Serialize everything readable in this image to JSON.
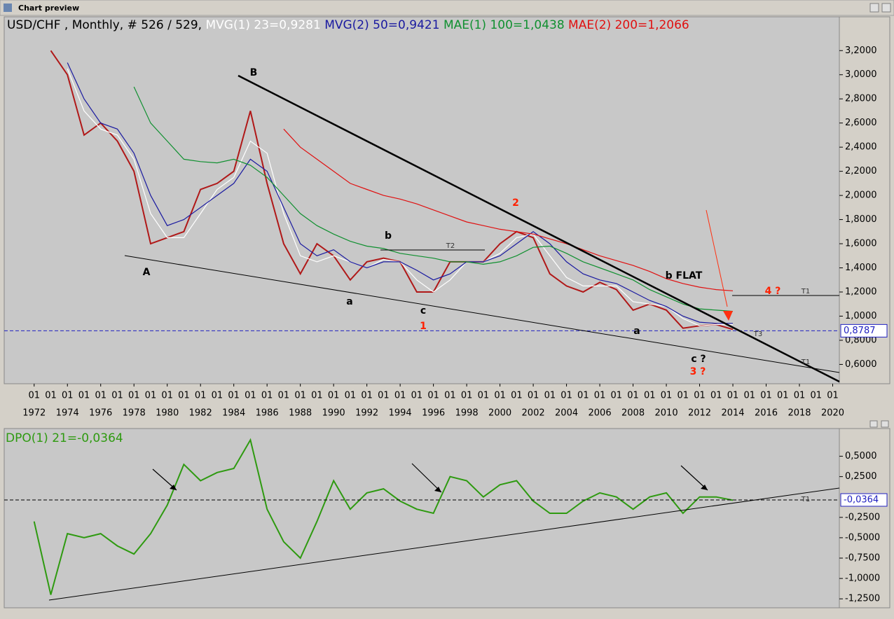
{
  "window_title": "Chart preview",
  "chart_data": [
    {
      "type": "line",
      "title": "USD/CHF , Monthly, # 526 / 529,",
      "x": [
        1973,
        1974,
        1975,
        1976,
        1977,
        1978,
        1979,
        1980,
        1981,
        1982,
        1983,
        1984,
        1985,
        1986,
        1987,
        1988,
        1989,
        1990,
        1991,
        1992,
        1993,
        1994,
        1995,
        1996,
        1997,
        1998,
        1999,
        2000,
        2001,
        2002,
        2003,
        2004,
        2005,
        2006,
        2007,
        2008,
        2009,
        2010,
        2011,
        2012,
        2013,
        2014
      ],
      "series": [
        {
          "name": "USD/CHF",
          "color": "#b01818",
          "values": [
            3.2,
            3.0,
            2.5,
            2.6,
            2.45,
            2.2,
            1.6,
            1.65,
            1.7,
            2.05,
            2.1,
            2.2,
            2.7,
            2.1,
            1.6,
            1.35,
            1.6,
            1.5,
            1.3,
            1.45,
            1.48,
            1.45,
            1.2,
            1.2,
            1.45,
            1.45,
            1.45,
            1.6,
            1.7,
            1.65,
            1.35,
            1.25,
            1.2,
            1.28,
            1.22,
            1.05,
            1.1,
            1.05,
            0.9,
            0.92,
            0.93,
            0.89
          ]
        },
        {
          "name": "MVG(1) 23=0,9281",
          "color": "#ffffff",
          "values": [
            null,
            3.05,
            2.7,
            2.55,
            2.5,
            2.3,
            1.85,
            1.65,
            1.65,
            1.85,
            2.05,
            2.15,
            2.45,
            2.35,
            1.85,
            1.5,
            1.45,
            1.5,
            1.45,
            1.4,
            1.47,
            1.45,
            1.3,
            1.2,
            1.3,
            1.45,
            1.45,
            1.52,
            1.65,
            1.68,
            1.5,
            1.32,
            1.25,
            1.25,
            1.25,
            1.12,
            1.1,
            1.08,
            0.98,
            0.92,
            0.93,
            0.93
          ]
        },
        {
          "name": "MVG(2) 50=0,9421",
          "color": "#1a1aa0",
          "values": [
            null,
            3.1,
            2.8,
            2.6,
            2.55,
            2.35,
            2.0,
            1.75,
            1.8,
            1.9,
            2.0,
            2.1,
            2.3,
            2.2,
            1.9,
            1.6,
            1.5,
            1.55,
            1.45,
            1.4,
            1.45,
            1.45,
            1.38,
            1.3,
            1.35,
            1.45,
            1.45,
            1.5,
            1.6,
            1.7,
            1.6,
            1.45,
            1.35,
            1.3,
            1.27,
            1.2,
            1.13,
            1.08,
            1.0,
            0.95,
            0.94,
            0.94
          ]
        },
        {
          "name": "MAE(1) 100=1,0438",
          "color": "#109030",
          "values": [
            null,
            null,
            null,
            null,
            null,
            2.9,
            2.6,
            2.45,
            2.3,
            2.28,
            2.27,
            2.3,
            2.25,
            2.15,
            2.0,
            1.85,
            1.75,
            1.68,
            1.62,
            1.58,
            1.56,
            1.52,
            1.5,
            1.48,
            1.45,
            1.45,
            1.43,
            1.45,
            1.5,
            1.57,
            1.58,
            1.52,
            1.45,
            1.4,
            1.35,
            1.3,
            1.22,
            1.16,
            1.1,
            1.06,
            1.05,
            1.04
          ]
        },
        {
          "name": "MAE(2) 200=1,2066",
          "color": "#e01010",
          "values": [
            null,
            null,
            null,
            null,
            null,
            null,
            null,
            null,
            null,
            null,
            null,
            null,
            null,
            null,
            2.55,
            2.4,
            2.3,
            2.2,
            2.1,
            2.05,
            2.0,
            1.97,
            1.93,
            1.88,
            1.83,
            1.78,
            1.75,
            1.72,
            1.7,
            1.68,
            1.64,
            1.6,
            1.55,
            1.5,
            1.46,
            1.42,
            1.37,
            1.31,
            1.27,
            1.24,
            1.22,
            1.21
          ]
        }
      ],
      "last_value": {
        "value": 0.8787,
        "label": "0,8787"
      },
      "xlim": [
        1970.2,
        2020.4
      ],
      "xticks": [
        1972,
        1974,
        1976,
        1978,
        1980,
        1982,
        1984,
        1986,
        1988,
        1990,
        1992,
        1994,
        1996,
        1998,
        2000,
        2002,
        2004,
        2006,
        2008,
        2010,
        2012,
        2014,
        2016,
        2018,
        2020
      ],
      "month_label": "01",
      "ylim": [
        0.44,
        3.48
      ],
      "yticks": [
        {
          "value": 3.2,
          "label": "3,2000"
        },
        {
          "value": 3.0,
          "label": "3,0000"
        },
        {
          "value": 2.8,
          "label": "2,8000"
        },
        {
          "value": 2.6,
          "label": "2,6000"
        },
        {
          "value": 2.4,
          "label": "2,4000"
        },
        {
          "value": 2.2,
          "label": "2,2000"
        },
        {
          "value": 2.0,
          "label": "2,0000"
        },
        {
          "value": 1.8,
          "label": "1,8000"
        },
        {
          "value": 1.6,
          "label": "1,6000"
        },
        {
          "value": 1.4,
          "label": "1,4000"
        },
        {
          "value": 1.2,
          "label": "1,2000"
        },
        {
          "value": 1.0,
          "label": "1,0000"
        },
        {
          "value": 0.8,
          "label": "0,8000"
        },
        {
          "value": 0.6,
          "label": "0,6000"
        }
      ],
      "annotations": [
        "B",
        "A",
        "a",
        "b",
        "c",
        "1",
        "T2",
        "2",
        "b FLAT",
        "4 ?",
        "T1",
        "T3",
        "a",
        "c ?",
        "3 ?",
        "T1"
      ]
    },
    {
      "type": "line",
      "x": [
        1972,
        1973,
        1974,
        1975,
        1976,
        1977,
        1978,
        1979,
        1980,
        1981,
        1982,
        1983,
        1984,
        1985,
        1986,
        1987,
        1988,
        1989,
        1990,
        1991,
        1992,
        1993,
        1994,
        1995,
        1996,
        1997,
        1998,
        1999,
        2000,
        2001,
        2002,
        2003,
        2004,
        2005,
        2006,
        2007,
        2008,
        2009,
        2010,
        2011,
        2012,
        2013,
        2014
      ],
      "series": [
        {
          "name": "DPO(1) 21=-0,0364",
          "color": "#2e9a10",
          "values": [
            -0.3,
            -1.2,
            -0.45,
            -0.5,
            -0.45,
            -0.6,
            -0.7,
            -0.45,
            -0.1,
            0.4,
            0.2,
            0.3,
            0.35,
            0.7,
            -0.15,
            -0.55,
            -0.75,
            -0.3,
            0.2,
            -0.15,
            0.05,
            0.1,
            -0.05,
            -0.15,
            -0.2,
            0.25,
            0.2,
            0.0,
            0.15,
            0.2,
            -0.05,
            -0.2,
            -0.2,
            -0.05,
            0.05,
            0.0,
            -0.15,
            0.0,
            0.05,
            -0.2,
            0.0,
            0.0,
            -0.04
          ]
        }
      ],
      "last_value": {
        "value": -0.0364,
        "label": "-0,0364"
      },
      "xlim": [
        1970.2,
        2020.4
      ],
      "ylim": [
        -1.36,
        0.84
      ],
      "yticks": [
        {
          "value": 0.5,
          "label": "0,5000"
        },
        {
          "value": 0.25,
          "label": "0,2500"
        },
        {
          "value": -0.25,
          "label": "-0,2500"
        },
        {
          "value": -0.5,
          "label": "-0,5000"
        },
        {
          "value": -0.75,
          "label": "-0,7500"
        },
        {
          "value": -1.0,
          "label": "-1,0000"
        },
        {
          "value": -1.25,
          "label": "-1,2500"
        }
      ],
      "annotations": [
        "T1"
      ]
    }
  ]
}
